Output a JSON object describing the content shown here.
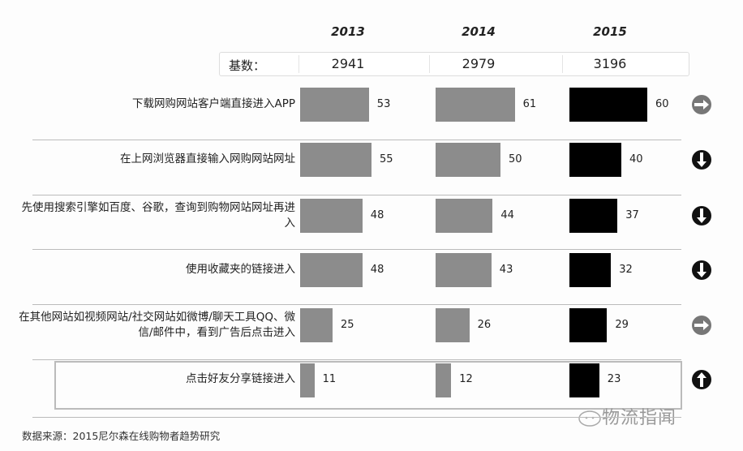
{
  "chart_data": {
    "type": "bar",
    "orientation": "horizontal",
    "years": [
      "2013",
      "2014",
      "2015"
    ],
    "base_label": "基数：",
    "base_values": [
      "2941",
      "2979",
      "3196"
    ],
    "categories": [
      "下载网购网站客户端直接进入APP",
      "在上网浏览器直接输入网购网站网址",
      "先使用搜索引擎如百度、谷歌，查询到购物网站网址再进入",
      "使用收藏夹的链接进入",
      "在其他网站如视频网站/社交网站如微博/聊天工具QQ、微信/邮件中，看到广告后点击进入",
      "点击好友分享链接进入"
    ],
    "series": [
      {
        "name": "2013",
        "color": "#8c8c8c",
        "values": [
          53,
          55,
          48,
          48,
          25,
          11
        ]
      },
      {
        "name": "2014",
        "color": "#8c8c8c",
        "values": [
          61,
          50,
          44,
          43,
          26,
          12
        ]
      },
      {
        "name": "2015",
        "color": "#000000",
        "values": [
          60,
          40,
          37,
          32,
          29,
          23
        ]
      }
    ],
    "trends": [
      "flat",
      "down",
      "down",
      "down",
      "flat",
      "up"
    ],
    "highlighted_category": "点击好友分享链接进入",
    "source": "数据来源：2015尼尔森在线购物者趋势研究"
  },
  "watermark": "物流指闻"
}
